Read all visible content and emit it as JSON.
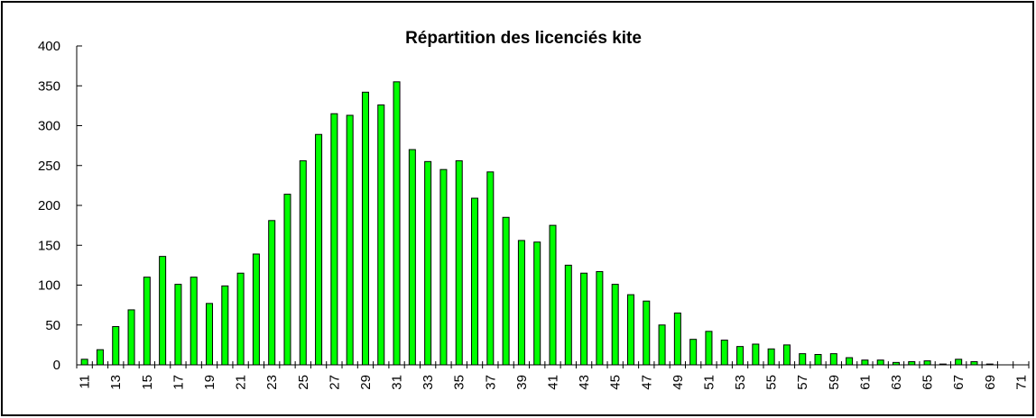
{
  "chart_data": {
    "type": "bar",
    "title": "Répartition des licenciés kite",
    "categories": [
      "11",
      null,
      "13",
      null,
      "15",
      null,
      "17",
      null,
      "19",
      null,
      "21",
      null,
      "23",
      null,
      "25",
      null,
      "27",
      null,
      "29",
      null,
      "31",
      null,
      "33",
      null,
      "35",
      null,
      "37",
      null,
      "39",
      null,
      "41",
      null,
      "43",
      null,
      "45",
      null,
      "47",
      null,
      "49",
      null,
      "51",
      null,
      "53",
      null,
      "55",
      null,
      "57",
      null,
      "59",
      null,
      "61",
      null,
      "63",
      null,
      "65",
      null,
      "67",
      null,
      "69",
      null,
      "71"
    ],
    "values": [
      7,
      19,
      48,
      69,
      110,
      136,
      101,
      110,
      77,
      99,
      115,
      139,
      181,
      214,
      256,
      289,
      315,
      313,
      342,
      326,
      355,
      270,
      255,
      245,
      256,
      209,
      242,
      185,
      156,
      154,
      175,
      125,
      115,
      117,
      101,
      88,
      80,
      50,
      65,
      32,
      42,
      31,
      23,
      26,
      20,
      25,
      14,
      13,
      14,
      9,
      6,
      6,
      3,
      4,
      5,
      1,
      7,
      4,
      1,
      0,
      0
    ],
    "color": "#00ff00",
    "ylim": [
      0,
      400
    ],
    "yticks": [
      0,
      50,
      100,
      150,
      200,
      250,
      300,
      350,
      400
    ],
    "grid": false
  }
}
